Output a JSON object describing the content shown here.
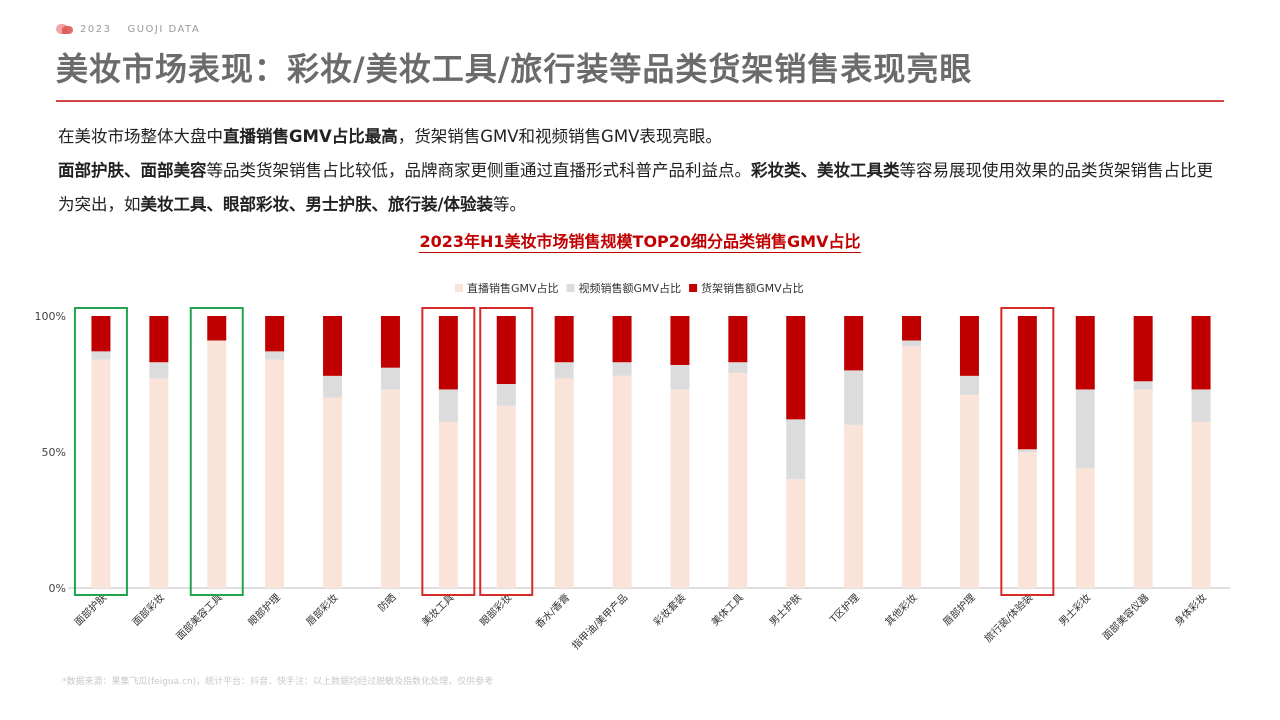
{
  "header": {
    "year": "2023",
    "brand": "GUOJI DATA",
    "title": "美妆市场表现：彩妆/美妆工具/旅行装等品类货架销售表现亮眼"
  },
  "body": {
    "p1": [
      {
        "text": "在美妆市场整体大盘中",
        "bold": false
      },
      {
        "text": "直播销售GMV占比最高",
        "bold": true
      },
      {
        "text": "，货架销售GMV和视频销售GMV表现亮眼。",
        "bold": false
      }
    ],
    "p2": [
      {
        "text": "面部护肤、面部美容",
        "bold": true
      },
      {
        "text": "等品类货架销售占比较低，品牌商家更侧重通过直播形式科普产品利益点。",
        "bold": false
      },
      {
        "text": "彩妆类、美妆工具类",
        "bold": true
      },
      {
        "text": "等容易展现使用效果的品类货架销售占比更为突出，如",
        "bold": false
      },
      {
        "text": "美妆工具、眼部彩妆、男士护肤、旅行装/体验装",
        "bold": true
      },
      {
        "text": "等。",
        "bold": false
      }
    ]
  },
  "chart_title": "2023年H1美妆市场销售规模TOP20细分品类销售GMV占比",
  "colors": {
    "live": "#fae4da",
    "video": "#dcdcdc",
    "shelf": "#c00000",
    "highlight_green": "#22a350",
    "highlight_red": "#d42a2a"
  },
  "chart_data": {
    "type": "bar",
    "stacked": true,
    "categories": [
      "面部护肤",
      "面部彩妆",
      "面部美容工具",
      "眼部护理",
      "唇部彩妆",
      "防晒",
      "美妆工具",
      "眼部彩妆",
      "香水/香膏",
      "指甲油/美甲产品",
      "彩妆套装",
      "美体工具",
      "男士护肤",
      "T区护理",
      "其他彩妆",
      "唇部护理",
      "旅行装/体验装",
      "男士彩妆",
      "面部美容仪器",
      "身体彩妆"
    ],
    "series": [
      {
        "name": "直播销售GMV占比",
        "color_key": "live",
        "values": [
          84,
          77,
          91,
          84,
          70,
          73,
          61,
          67,
          77,
          78,
          73,
          79,
          40,
          60,
          89,
          71,
          50,
          44,
          73,
          61
        ]
      },
      {
        "name": "视频销售额GMV占比",
        "color_key": "video",
        "values": [
          3,
          6,
          0,
          3,
          8,
          8,
          12,
          8,
          6,
          5,
          9,
          4,
          22,
          20,
          2,
          7,
          1,
          29,
          3,
          12
        ]
      },
      {
        "name": "货架销售额GMV占比",
        "color_key": "shelf",
        "values": [
          13,
          17,
          9,
          13,
          22,
          19,
          27,
          25,
          17,
          17,
          18,
          17,
          38,
          20,
          9,
          22,
          49,
          27,
          24,
          27
        ]
      }
    ],
    "yticks": [
      "0%",
      "50%",
      "100%"
    ],
    "ylim": [
      0,
      100
    ],
    "legend_position": "top-center",
    "highlighted_green": [
      "面部护肤",
      "面部美容工具"
    ],
    "highlighted_red": [
      "美妆工具",
      "眼部彩妆",
      "旅行装/体验装"
    ]
  },
  "footnote": "*数据来源：果集飞瓜(feigua.cn)，统计平台：抖音、快手注：以上数据均经过脱敏及指数化处理，仅供参考"
}
